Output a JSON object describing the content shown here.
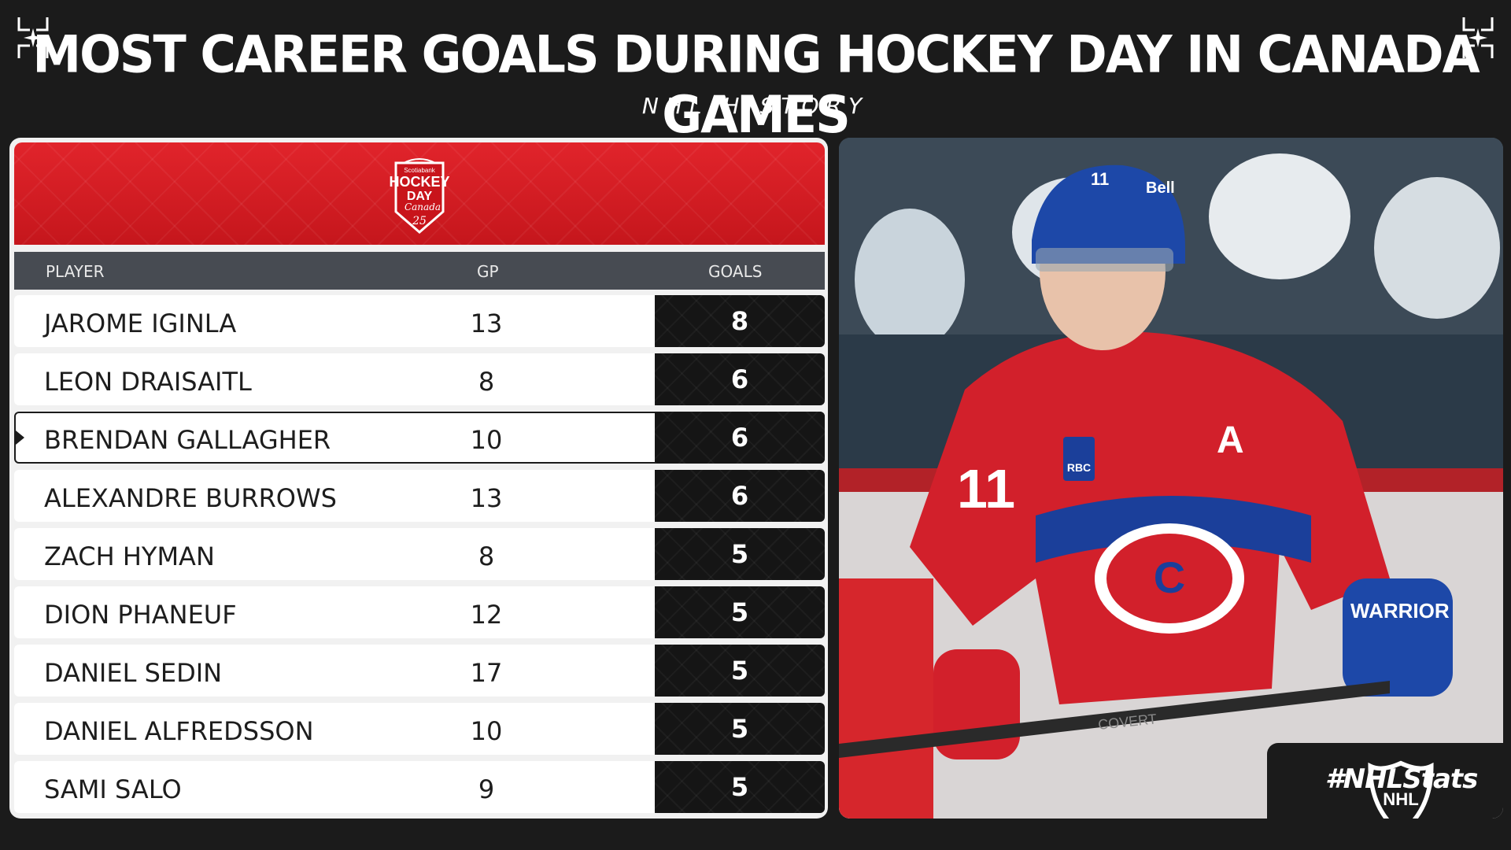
{
  "title": "MOST CAREER GOALS DURING HOCKEY DAY IN CANADA GAMES",
  "subtitle": "NHL HISTORY",
  "logo": {
    "icon": "hockey-day-in-canada-logo",
    "text_lines": [
      "Scotiabank",
      "HOCKEY",
      "DAY",
      "Canada",
      "25"
    ]
  },
  "table": {
    "columns": {
      "player": "PLAYER",
      "gp": "GP",
      "goals": "GOALS"
    },
    "rows": [
      {
        "player": "JAROME IGINLA",
        "gp": "13",
        "goals": "8",
        "highlight": false
      },
      {
        "player": "LEON DRAISAITL",
        "gp": "8",
        "goals": "6",
        "highlight": false
      },
      {
        "player": "BRENDAN GALLAGHER",
        "gp": "10",
        "goals": "6",
        "highlight": true
      },
      {
        "player": "ALEXANDRE BURROWS",
        "gp": "13",
        "goals": "6",
        "highlight": false
      },
      {
        "player": "ZACH HYMAN",
        "gp": "8",
        "goals": "5",
        "highlight": false
      },
      {
        "player": "DION PHANEUF",
        "gp": "12",
        "goals": "5",
        "highlight": false
      },
      {
        "player": "DANIEL SEDIN",
        "gp": "17",
        "goals": "5",
        "highlight": false
      },
      {
        "player": "DANIEL ALFREDSSON",
        "gp": "10",
        "goals": "5",
        "highlight": false
      },
      {
        "player": "SAMI SALO",
        "gp": "9",
        "goals": "5",
        "highlight": false
      }
    ]
  },
  "photo": {
    "jersey_number": "11",
    "captain_letter": "A",
    "sponsor_patch": "RBC",
    "glove_brand": "WARRIOR",
    "stick_text": "COVERT",
    "helmet_text": "Bell"
  },
  "badge": {
    "text": "#NHLStats",
    "icon": "nhl-shield-icon"
  },
  "colors": {
    "background": "#1b1b1b",
    "banner_red": "#d81e25",
    "header_gray": "#474b52",
    "goals_cell": "#151515"
  }
}
